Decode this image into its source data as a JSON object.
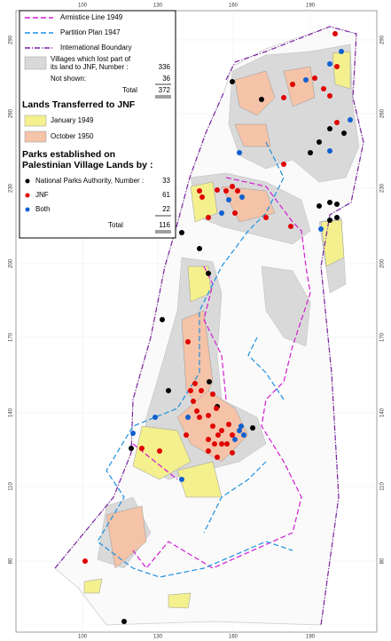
{
  "legend": {
    "lines": [
      "Armistice Line 1949",
      "Partition Plan 1947",
      "International Boundary"
    ],
    "villages": {
      "label_line1": "Villages which lost part of",
      "label_line2": "its land to JNF,  Number :",
      "number": "336",
      "not_shown_label": "Not shown:",
      "not_shown": "36",
      "total_label": "Total",
      "total": "372"
    },
    "lands_title": "Lands Transferred to JNF",
    "lands": [
      "January 1949",
      "October 1950"
    ],
    "parks_title_line1": "Parks established on",
    "parks_title_line2": "Palestinian Village Lands by :",
    "parks": [
      {
        "label": "National Parks Authority, Number :",
        "number": "33"
      },
      {
        "label": "JNF",
        "number": "61"
      },
      {
        "label": "Both",
        "number": "22"
      }
    ],
    "parks_total_label": "Total",
    "parks_total": "116"
  },
  "grid": {
    "x_labels": [
      "100",
      "130",
      "160",
      "190"
    ],
    "y_labels": [
      "290",
      "260",
      "230",
      "200",
      "170",
      "140",
      "110",
      "80"
    ]
  }
}
